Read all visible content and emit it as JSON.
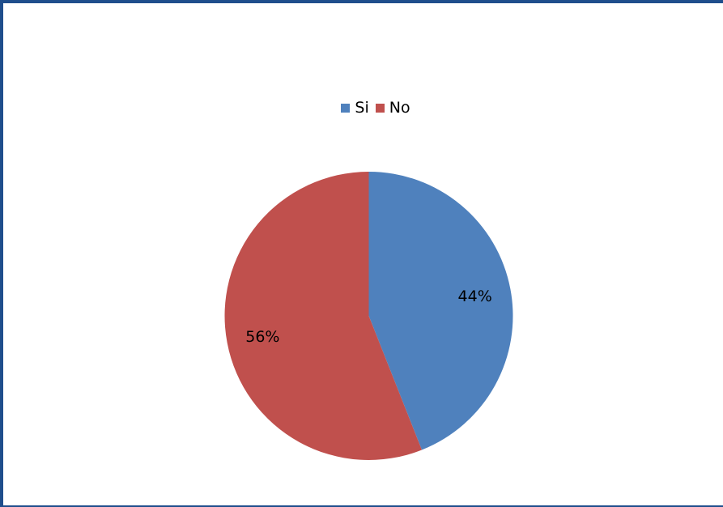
{
  "chart_data": {
    "type": "pie",
    "legend_position": "top",
    "slices": [
      {
        "name": "Si",
        "value": 44,
        "label": "44%",
        "color": "#4f81bd"
      },
      {
        "name": "No",
        "value": 56,
        "label": "56%",
        "color": "#c0504d"
      }
    ]
  }
}
